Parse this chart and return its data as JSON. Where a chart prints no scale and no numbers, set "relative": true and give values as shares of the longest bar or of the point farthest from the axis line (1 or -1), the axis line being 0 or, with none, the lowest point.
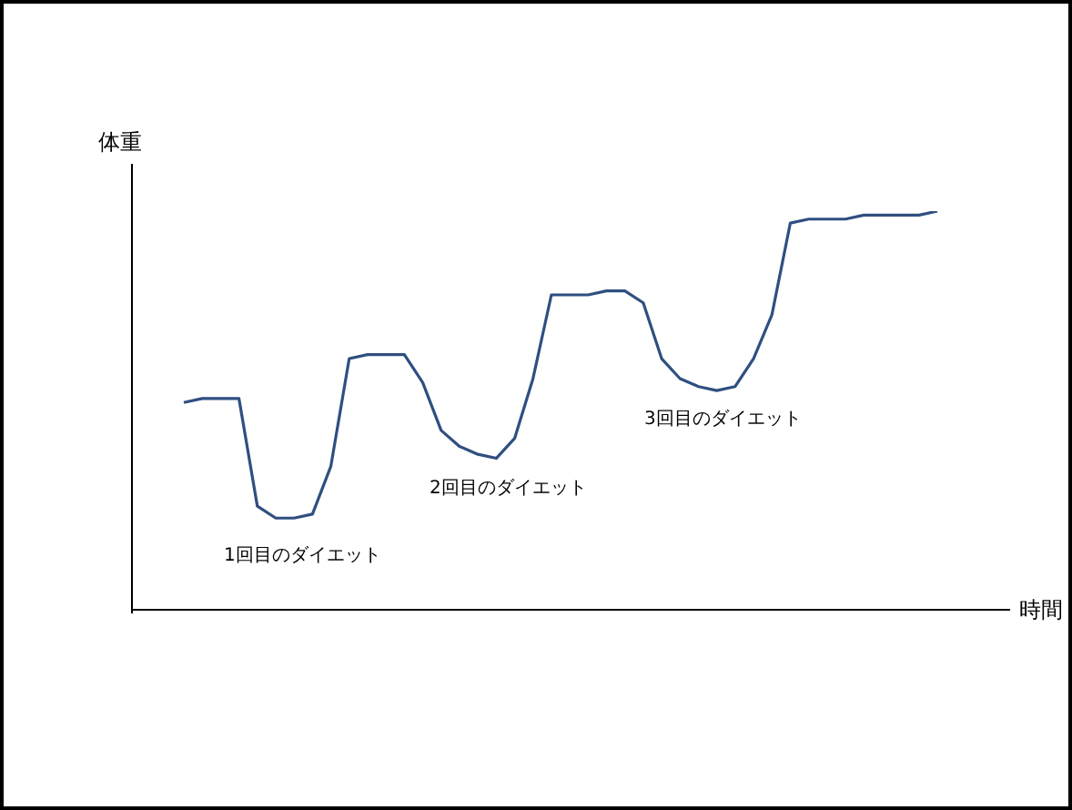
{
  "chart_data": {
    "type": "line",
    "xlabel": "時間",
    "ylabel": "体重",
    "relative": true,
    "marker": "none",
    "line_style": "solid",
    "color": "#2f4f80",
    "categories": [
      null,
      null,
      null,
      null,
      null,
      null,
      null,
      null,
      null,
      null,
      null,
      null,
      null,
      null,
      null,
      null,
      null,
      null,
      null,
      null,
      null,
      null,
      null,
      null,
      null,
      null,
      null,
      null,
      null,
      null,
      null,
      null,
      null,
      null,
      null,
      null,
      null,
      null,
      null,
      null,
      null,
      null
    ],
    "values": [
      0.52,
      0.53,
      0.53,
      0.53,
      0.26,
      0.23,
      0.23,
      0.24,
      0.36,
      0.63,
      0.64,
      0.64,
      0.64,
      0.57,
      0.45,
      0.41,
      0.39,
      0.38,
      0.43,
      0.58,
      0.79,
      0.79,
      0.79,
      0.8,
      0.8,
      0.77,
      0.63,
      0.58,
      0.56,
      0.55,
      0.56,
      0.63,
      0.74,
      0.97,
      0.98,
      0.98,
      0.98,
      0.99,
      0.99,
      0.99,
      0.99,
      1
    ],
    "annotations": [
      "1回目のダイエット",
      "2回目のダイエット",
      "3回目のダイエット"
    ]
  }
}
